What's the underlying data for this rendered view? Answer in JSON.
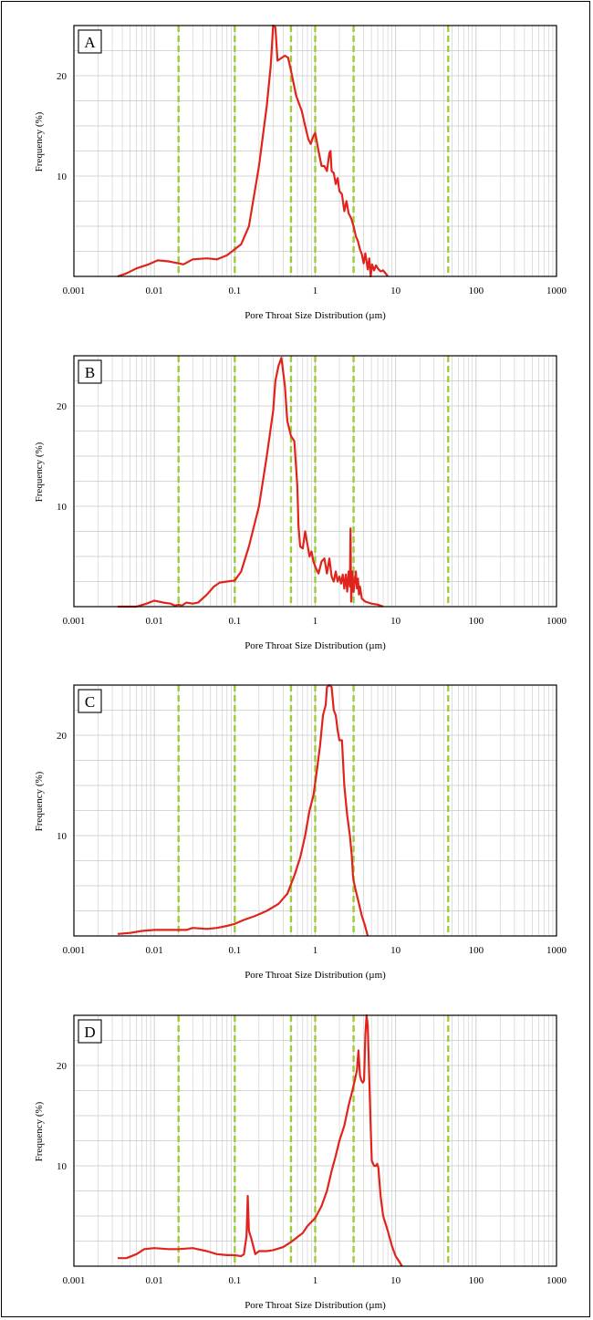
{
  "figure": {
    "x_axis_title": "Pore Throat Size Distribution (µm)",
    "y_axis_title": "Frequency (%)",
    "x_tick_labels": [
      "0.001",
      "0.01",
      "0.1",
      "1",
      "10",
      "100",
      "1000"
    ],
    "y_tick_labels": [
      "10",
      "20"
    ],
    "curve_color": "#e0241c",
    "marker_color": "#9fcc3a",
    "grid_color": "#c8c8c8"
  },
  "chart_data": [
    {
      "type": "line",
      "label": "A",
      "xscale": "log",
      "xlim": [
        0.001,
        1000
      ],
      "ylim": [
        0,
        25
      ],
      "xlabel": "Pore Throat Size Distribution (µm)",
      "ylabel": "Frequency (%)",
      "grid": true,
      "vlines": [
        0.02,
        0.1,
        0.5,
        1,
        3,
        45
      ],
      "series": [
        {
          "points": [
            [
              0.0035,
              0
            ],
            [
              0.0045,
              0.3
            ],
            [
              0.006,
              0.8
            ],
            [
              0.0085,
              1.2
            ],
            [
              0.011,
              1.6
            ],
            [
              0.015,
              1.5
            ],
            [
              0.02,
              1.3
            ],
            [
              0.023,
              1.2
            ],
            [
              0.03,
              1.7
            ],
            [
              0.045,
              1.8
            ],
            [
              0.06,
              1.7
            ],
            [
              0.08,
              2.1
            ],
            [
              0.1,
              2.7
            ],
            [
              0.12,
              3.2
            ],
            [
              0.15,
              5
            ],
            [
              0.2,
              11
            ],
            [
              0.25,
              17
            ],
            [
              0.28,
              21
            ],
            [
              0.3,
              25
            ],
            [
              0.32,
              24.8
            ],
            [
              0.34,
              21.5
            ],
            [
              0.37,
              21.7
            ],
            [
              0.42,
              22
            ],
            [
              0.46,
              21.8
            ],
            [
              0.5,
              20.5
            ],
            [
              0.58,
              18
            ],
            [
              0.68,
              16.5
            ],
            [
              0.75,
              15
            ],
            [
              0.82,
              13.7
            ],
            [
              0.88,
              13.2
            ],
            [
              0.95,
              14
            ],
            [
              1.0,
              14.3
            ],
            [
              1.1,
              12.5
            ],
            [
              1.2,
              11
            ],
            [
              1.3,
              11
            ],
            [
              1.4,
              10.5
            ],
            [
              1.5,
              12.3
            ],
            [
              1.55,
              12.5
            ],
            [
              1.6,
              10.5
            ],
            [
              1.7,
              10.3
            ],
            [
              1.8,
              9.2
            ],
            [
              1.9,
              9.8
            ],
            [
              2.0,
              8.5
            ],
            [
              2.15,
              8.2
            ],
            [
              2.3,
              6.5
            ],
            [
              2.45,
              7.5
            ],
            [
              2.6,
              6.3
            ],
            [
              2.8,
              5.8
            ],
            [
              3.0,
              5
            ],
            [
              3.2,
              4
            ],
            [
              3.4,
              3.5
            ],
            [
              3.6,
              2.7
            ],
            [
              3.8,
              2.2
            ],
            [
              4.0,
              1.3
            ],
            [
              4.2,
              2.3
            ],
            [
              4.5,
              0.7
            ],
            [
              4.7,
              1.8
            ],
            [
              4.9,
              0
            ],
            [
              5.1,
              1.2
            ],
            [
              5.4,
              0.6
            ],
            [
              5.7,
              1.1
            ],
            [
              6.0,
              0.8
            ],
            [
              6.5,
              0.5
            ],
            [
              7.0,
              0.6
            ],
            [
              7.5,
              0.3
            ],
            [
              8.0,
              0
            ]
          ]
        }
      ]
    },
    {
      "type": "line",
      "label": "B",
      "xscale": "log",
      "xlim": [
        0.001,
        1000
      ],
      "ylim": [
        0,
        25
      ],
      "xlabel": "Pore Throat Size Distribution (µm)",
      "ylabel": "Frequency (%)",
      "grid": true,
      "vlines": [
        0.02,
        0.1,
        0.5,
        1,
        3,
        45
      ],
      "series": [
        {
          "points": [
            [
              0.0035,
              0
            ],
            [
              0.006,
              0
            ],
            [
              0.008,
              0.3
            ],
            [
              0.01,
              0.6
            ],
            [
              0.013,
              0.4
            ],
            [
              0.016,
              0.3
            ],
            [
              0.018,
              0.1
            ],
            [
              0.02,
              0.2
            ],
            [
              0.022,
              0.1
            ],
            [
              0.025,
              0.4
            ],
            [
              0.03,
              0.3
            ],
            [
              0.035,
              0.4
            ],
            [
              0.045,
              1.2
            ],
            [
              0.055,
              2
            ],
            [
              0.065,
              2.4
            ],
            [
              0.08,
              2.5
            ],
            [
              0.1,
              2.6
            ],
            [
              0.12,
              3.5
            ],
            [
              0.15,
              6
            ],
            [
              0.2,
              10
            ],
            [
              0.25,
              15
            ],
            [
              0.3,
              19.5
            ],
            [
              0.32,
              22.5
            ],
            [
              0.35,
              24
            ],
            [
              0.38,
              24.8
            ],
            [
              0.42,
              22
            ],
            [
              0.45,
              18.5
            ],
            [
              0.5,
              17
            ],
            [
              0.55,
              16.5
            ],
            [
              0.6,
              12
            ],
            [
              0.62,
              8
            ],
            [
              0.65,
              6
            ],
            [
              0.7,
              5.8
            ],
            [
              0.75,
              7.5
            ],
            [
              0.8,
              6.2
            ],
            [
              0.85,
              5
            ],
            [
              0.9,
              5.5
            ],
            [
              0.95,
              4.5
            ],
            [
              1.0,
              4
            ],
            [
              1.1,
              3.3
            ],
            [
              1.2,
              4.5
            ],
            [
              1.3,
              4.8
            ],
            [
              1.4,
              3.3
            ],
            [
              1.5,
              4.8
            ],
            [
              1.6,
              3
            ],
            [
              1.7,
              2.5
            ],
            [
              1.8,
              3.5
            ],
            [
              1.9,
              2.5
            ],
            [
              2.0,
              3
            ],
            [
              2.1,
              2.3
            ],
            [
              2.2,
              3.2
            ],
            [
              2.3,
              1.8
            ],
            [
              2.4,
              3.2
            ],
            [
              2.5,
              1.5
            ],
            [
              2.6,
              3.5
            ],
            [
              2.7,
              2
            ],
            [
              2.75,
              7.8
            ],
            [
              2.8,
              0.5
            ],
            [
              2.9,
              3.5
            ],
            [
              3.0,
              1.5
            ],
            [
              3.2,
              3.5
            ],
            [
              3.3,
              1.8
            ],
            [
              3.4,
              2.8
            ],
            [
              3.5,
              1.2
            ],
            [
              3.6,
              2
            ],
            [
              3.8,
              0.8
            ],
            [
              4.2,
              0.5
            ],
            [
              5.0,
              0.3
            ],
            [
              6.0,
              0.2
            ],
            [
              7.0,
              0
            ]
          ]
        }
      ]
    },
    {
      "type": "line",
      "label": "C",
      "xscale": "log",
      "xlim": [
        0.001,
        1000
      ],
      "ylim": [
        0,
        25
      ],
      "xlabel": "Pore Throat Size Distribution (µm)",
      "ylabel": "Frequency (%)",
      "grid": true,
      "vlines": [
        0.02,
        0.1,
        0.5,
        1,
        3,
        45
      ],
      "series": [
        {
          "points": [
            [
              0.0035,
              0.2
            ],
            [
              0.005,
              0.3
            ],
            [
              0.007,
              0.5
            ],
            [
              0.01,
              0.6
            ],
            [
              0.015,
              0.6
            ],
            [
              0.02,
              0.6
            ],
            [
              0.025,
              0.6
            ],
            [
              0.03,
              0.8
            ],
            [
              0.045,
              0.7
            ],
            [
              0.06,
              0.8
            ],
            [
              0.08,
              1
            ],
            [
              0.1,
              1.2
            ],
            [
              0.13,
              1.6
            ],
            [
              0.18,
              2
            ],
            [
              0.25,
              2.5
            ],
            [
              0.35,
              3.2
            ],
            [
              0.45,
              4.2
            ],
            [
              0.55,
              6
            ],
            [
              0.65,
              7.8
            ],
            [
              0.75,
              10
            ],
            [
              0.85,
              12.5
            ],
            [
              0.95,
              14
            ],
            [
              1.05,
              16.5
            ],
            [
              1.15,
              19
            ],
            [
              1.25,
              22
            ],
            [
              1.35,
              23
            ],
            [
              1.4,
              24.8
            ],
            [
              1.5,
              25
            ],
            [
              1.6,
              24.8
            ],
            [
              1.7,
              22.5
            ],
            [
              1.8,
              22
            ],
            [
              1.9,
              20.5
            ],
            [
              2.0,
              19.5
            ],
            [
              2.15,
              19.5
            ],
            [
              2.3,
              15
            ],
            [
              2.5,
              12
            ],
            [
              2.7,
              10
            ],
            [
              2.85,
              8
            ],
            [
              2.95,
              6
            ],
            [
              3.0,
              5.5
            ],
            [
              3.2,
              4.5
            ],
            [
              3.5,
              3.2
            ],
            [
              3.8,
              2
            ],
            [
              4.1,
              1.2
            ],
            [
              4.5,
              0
            ]
          ]
        }
      ]
    },
    {
      "type": "line",
      "label": "D",
      "xscale": "log",
      "xlim": [
        0.001,
        1000
      ],
      "ylim": [
        0,
        25
      ],
      "xlabel": "Pore Throat Size Distribution (µm)",
      "ylabel": "Frequency (%)",
      "grid": true,
      "vlines": [
        0.02,
        0.1,
        0.5,
        1,
        3,
        45
      ],
      "series": [
        {
          "points": [
            [
              0.0035,
              0.8
            ],
            [
              0.0045,
              0.8
            ],
            [
              0.006,
              1.2
            ],
            [
              0.0075,
              1.7
            ],
            [
              0.01,
              1.8
            ],
            [
              0.015,
              1.7
            ],
            [
              0.02,
              1.7
            ],
            [
              0.03,
              1.8
            ],
            [
              0.045,
              1.5
            ],
            [
              0.06,
              1.2
            ],
            [
              0.08,
              1.1
            ],
            [
              0.1,
              1.1
            ],
            [
              0.12,
              1.0
            ],
            [
              0.13,
              1.2
            ],
            [
              0.14,
              3
            ],
            [
              0.145,
              7
            ],
            [
              0.15,
              3.5
            ],
            [
              0.16,
              2.8
            ],
            [
              0.18,
              1.2
            ],
            [
              0.2,
              1.5
            ],
            [
              0.25,
              1.5
            ],
            [
              0.3,
              1.6
            ],
            [
              0.4,
              1.9
            ],
            [
              0.5,
              2.4
            ],
            [
              0.6,
              2.9
            ],
            [
              0.7,
              3.3
            ],
            [
              0.8,
              4
            ],
            [
              1.0,
              4.8
            ],
            [
              1.2,
              6
            ],
            [
              1.4,
              7.5
            ],
            [
              1.6,
              9.5
            ],
            [
              1.8,
              11
            ],
            [
              2.0,
              12.5
            ],
            [
              2.3,
              14
            ],
            [
              2.6,
              16
            ],
            [
              2.9,
              17.5
            ],
            [
              3.1,
              18.5
            ],
            [
              3.3,
              19.5
            ],
            [
              3.45,
              21.5
            ],
            [
              3.6,
              19
            ],
            [
              3.75,
              18.5
            ],
            [
              3.9,
              18.3
            ],
            [
              4.05,
              18.5
            ],
            [
              4.2,
              23
            ],
            [
              4.35,
              25
            ],
            [
              4.5,
              24
            ],
            [
              4.65,
              20
            ],
            [
              4.85,
              15
            ],
            [
              5.05,
              10.5
            ],
            [
              5.4,
              10
            ],
            [
              5.7,
              10
            ],
            [
              5.9,
              10.2
            ],
            [
              6.1,
              9.8
            ],
            [
              6.5,
              7
            ],
            [
              7.0,
              5
            ],
            [
              8.0,
              3.5
            ],
            [
              9.0,
              2
            ],
            [
              10.0,
              1
            ],
            [
              11.0,
              0.5
            ],
            [
              12.0,
              0
            ]
          ]
        }
      ]
    }
  ]
}
